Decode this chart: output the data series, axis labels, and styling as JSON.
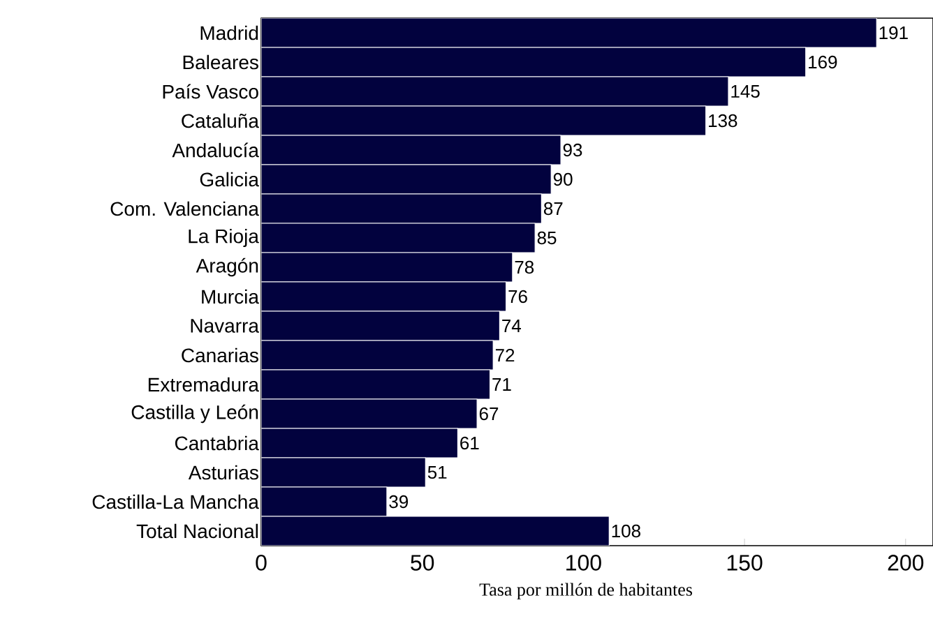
{
  "chart_data": {
    "type": "bar",
    "orientation": "horizontal",
    "xlabel": "Tasa por millón de habitantes",
    "categories": [
      "Madrid",
      "Baleares",
      "País Vasco",
      "Cataluña",
      "Andalucía",
      "Galicia",
      "Com. Valenciana",
      "La Rioja",
      "Aragón",
      "Murcia",
      "Navarra",
      "Canarias",
      "Extremadura",
      "Castilla y León",
      "Cantabria",
      "Asturias",
      "Castilla-La Mancha",
      "Total Nacional"
    ],
    "values": [
      191,
      169,
      145,
      138,
      93,
      90,
      87,
      85,
      78,
      76,
      74,
      72,
      71,
      67,
      61,
      51,
      39,
      108
    ],
    "color": "#02023e",
    "data_labels": true,
    "xlim": [
      0,
      208.5
    ],
    "xticks": [
      0,
      50,
      100,
      150,
      200
    ],
    "grid": false
  }
}
